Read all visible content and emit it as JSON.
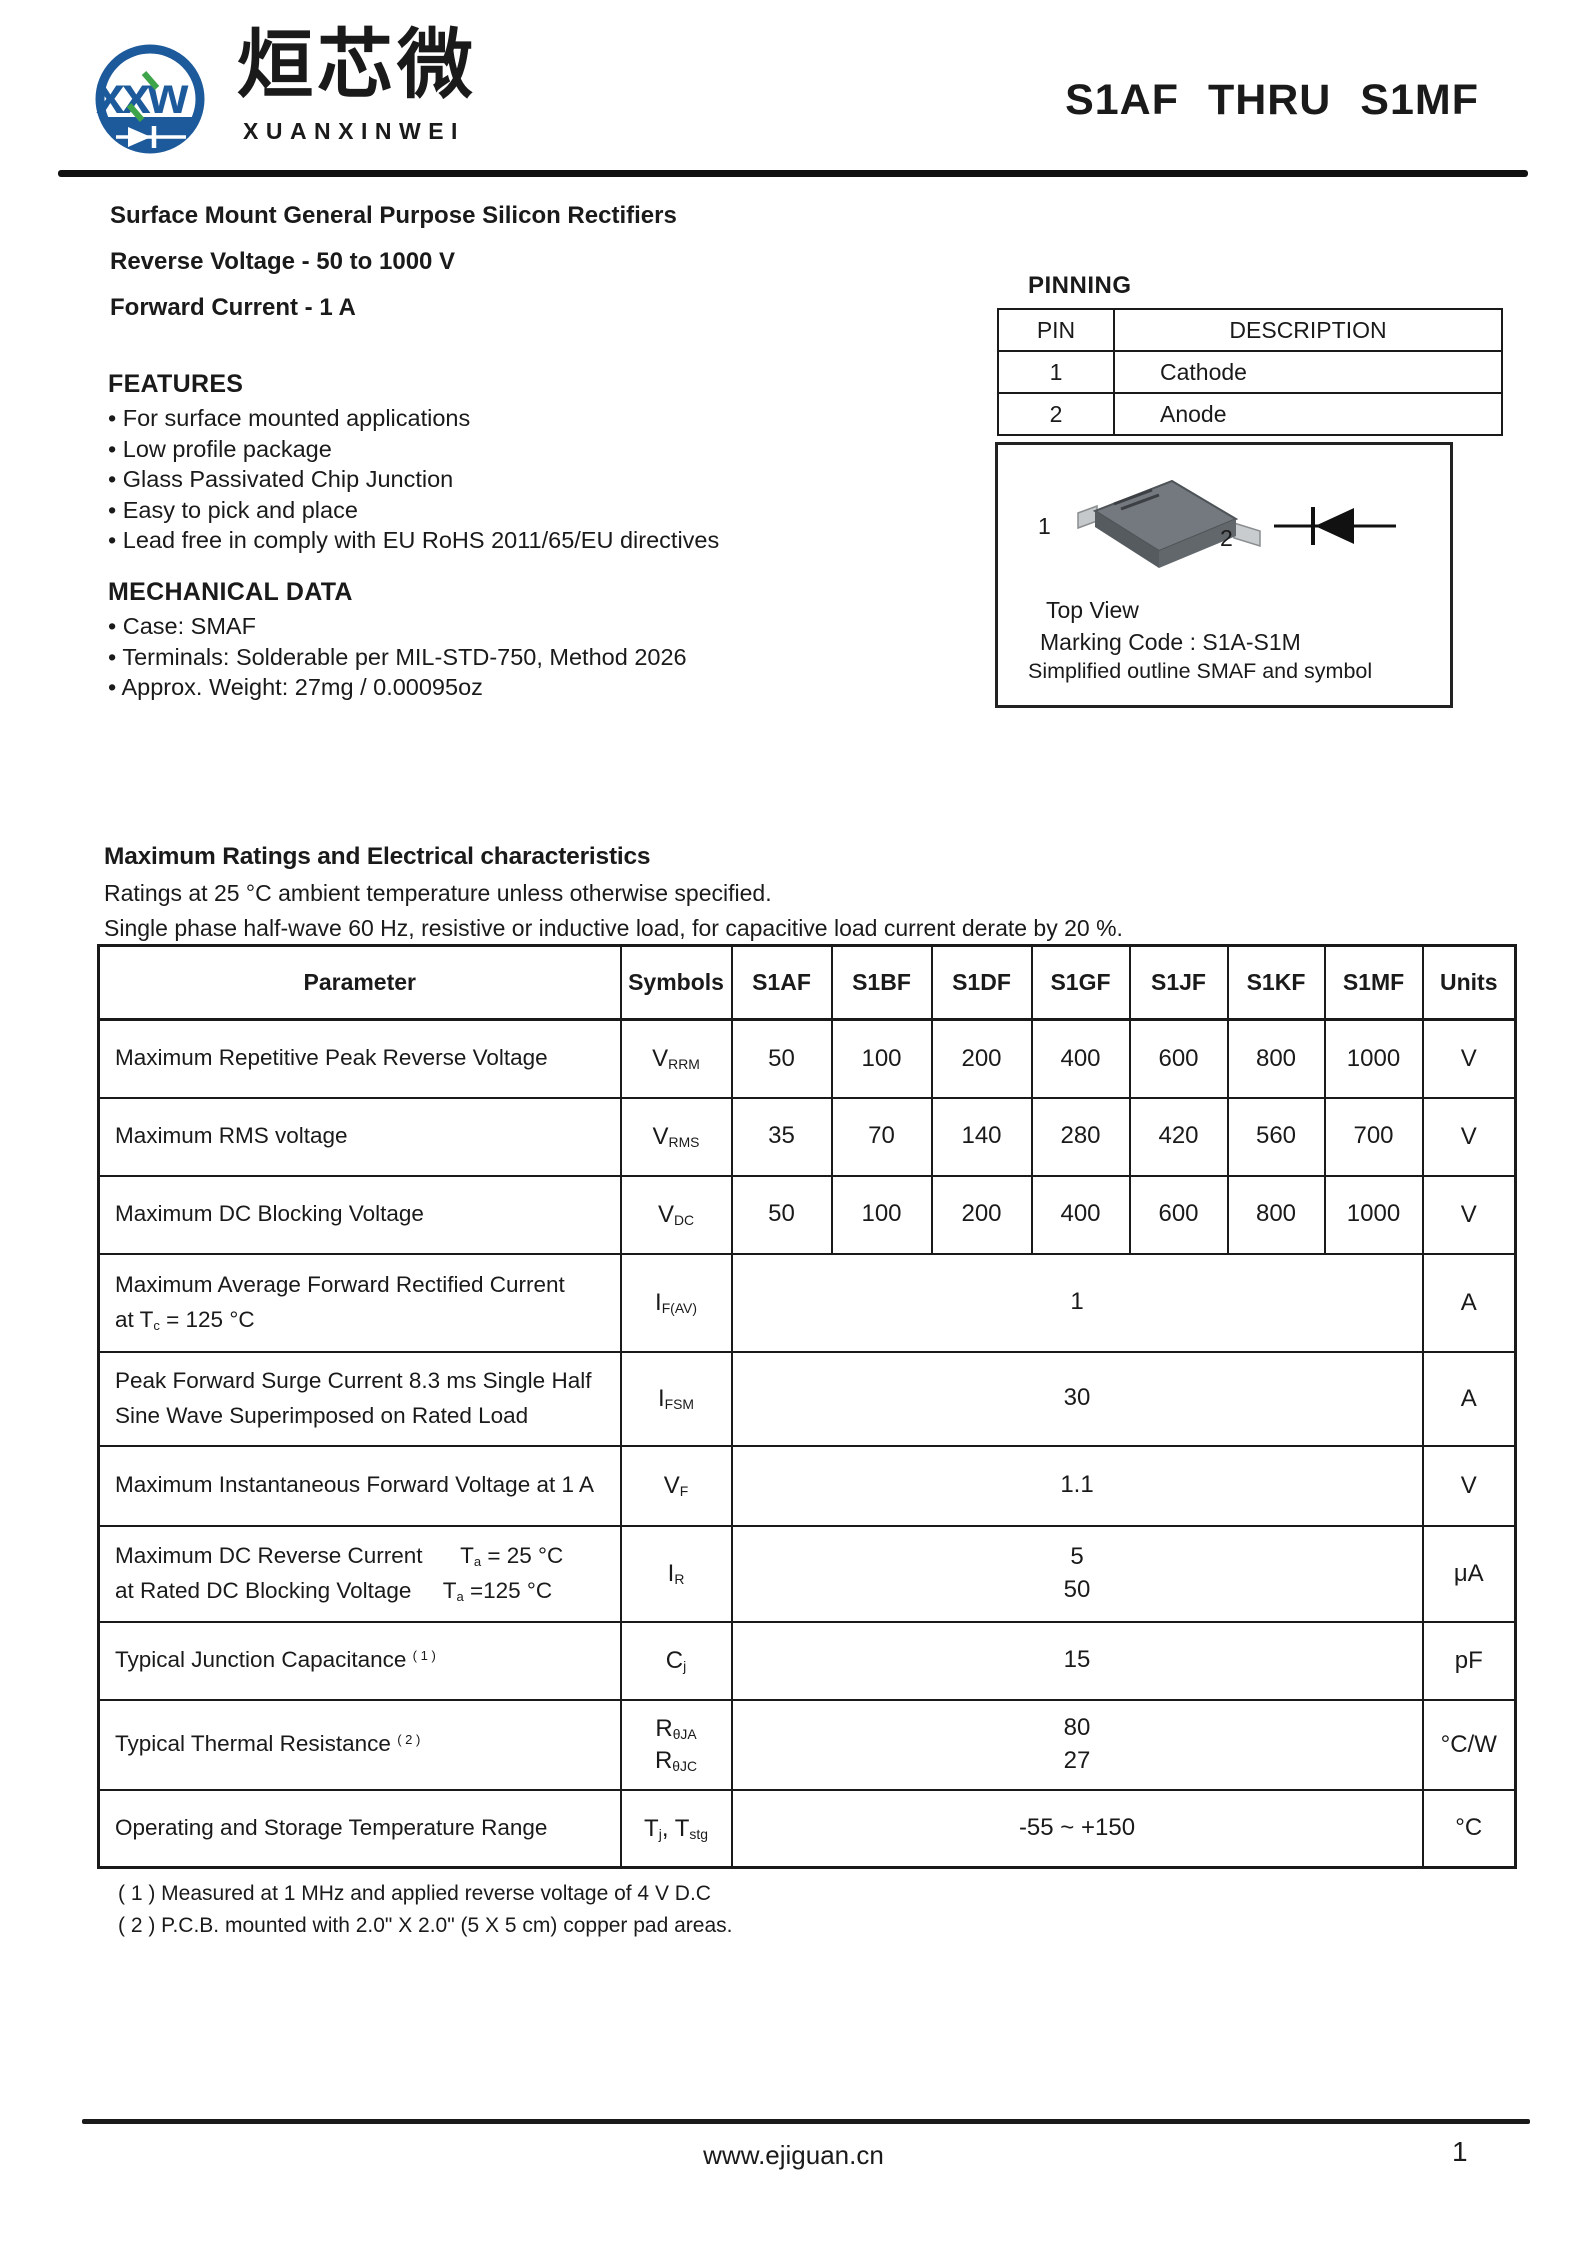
{
  "header": {
    "logo_text": "xxw",
    "company_cn": "烜芯微",
    "company_en": "XUANXINWEI",
    "title": "S1AF  THRU  S1MF",
    "brand_blue": "#1d5a9b",
    "brand_green": "#3ea44a"
  },
  "intro": {
    "line1": "Surface Mount General Purpose Silicon Rectifiers",
    "line2": "Reverse Voltage - 50 to 1000 V",
    "line3": "Forward Current - 1 A"
  },
  "features": {
    "heading": "FEATURES",
    "items": [
      "• For surface mounted applications",
      "• Low profile package",
      "• Glass Passivated Chip Junction",
      "• Easy to pick and place",
      "• Lead free in comply with EU RoHS 2011/65/EU directives"
    ]
  },
  "mechanical": {
    "heading": "MECHANICAL DATA",
    "items": [
      "• Case: SMAF",
      "• Terminals: Solderable per MIL-STD-750, Method 2026",
      "• Approx. Weight: 27mg / 0.00095oz"
    ]
  },
  "pinning": {
    "heading": "PINNING",
    "col_pin": "PIN",
    "col_desc": "DESCRIPTION",
    "rows": [
      {
        "pin": "1",
        "desc": "Cathode"
      },
      {
        "pin": "2",
        "desc": "Anode"
      }
    ]
  },
  "package_box": {
    "pin1": "1",
    "pin2": "2",
    "caption1": "Top View",
    "caption2": "Marking Code :  S1A-S1M",
    "caption3": "Simplified outline SMAF and symbol"
  },
  "ratings": {
    "heading": "Maximum Ratings and Electrical characteristics",
    "note1": "Ratings at 25 °C ambient temperature unless otherwise specified.",
    "note2": "Single phase half-wave 60 Hz, resistive or inductive load, for capacitive load current derate by 20 %."
  },
  "table": {
    "headers": [
      "Parameter",
      "Symbols",
      "S1AF",
      "S1BF",
      "S1DF",
      "S1GF",
      "S1JF",
      "S1KF",
      "S1MF",
      "Units"
    ],
    "rows": [
      {
        "param": [
          [
            {
              "t": "Maximum Repetitive Peak Reverse Voltage"
            }
          ]
        ],
        "symbol": [
          [
            {
              "t": "V"
            },
            {
              "t": "RRM",
              "sub": true
            }
          ]
        ],
        "values": [
          "50",
          "100",
          "200",
          "400",
          "600",
          "800",
          "1000"
        ],
        "unit": "V"
      },
      {
        "param": [
          [
            {
              "t": "Maximum RMS voltage"
            }
          ]
        ],
        "symbol": [
          [
            {
              "t": "V"
            },
            {
              "t": "RMS",
              "sub": true
            }
          ]
        ],
        "values": [
          "35",
          "70",
          "140",
          "280",
          "420",
          "560",
          "700"
        ],
        "unit": "V"
      },
      {
        "param": [
          [
            {
              "t": "Maximum DC Blocking Voltage"
            }
          ]
        ],
        "symbol": [
          [
            {
              "t": "V"
            },
            {
              "t": "DC",
              "sub": true
            }
          ]
        ],
        "values": [
          "50",
          "100",
          "200",
          "400",
          "600",
          "800",
          "1000"
        ],
        "unit": "V"
      },
      {
        "param": [
          [
            {
              "t": "Maximum Average Forward Rectified Current"
            }
          ],
          [
            {
              "t": "at T"
            },
            {
              "t": "c",
              "sub": true
            },
            {
              "t": " = 125 °C"
            }
          ]
        ],
        "symbol": [
          [
            {
              "t": "I"
            },
            {
              "t": "F(AV)",
              "sub": true
            }
          ]
        ],
        "merged": [
          "1"
        ],
        "unit": "A"
      },
      {
        "param": [
          [
            {
              "t": "Peak Forward Surge Current 8.3 ms Single Half"
            }
          ],
          [
            {
              "t": "Sine Wave Superimposed on Rated Load"
            }
          ]
        ],
        "symbol": [
          [
            {
              "t": "I"
            },
            {
              "t": "FSM",
              "sub": true
            }
          ]
        ],
        "merged": [
          "30"
        ],
        "unit": "A"
      },
      {
        "param": [
          [
            {
              "t": "Maximum Instantaneous Forward Voltage at 1 A"
            }
          ]
        ],
        "symbol": [
          [
            {
              "t": "V"
            },
            {
              "t": "F",
              "sub": true
            }
          ]
        ],
        "merged": [
          "1.1"
        ],
        "unit": "V"
      },
      {
        "param": [
          [
            {
              "t": "Maximum DC Reverse Current"
            },
            {
              "t": "      T"
            },
            {
              "t": "a",
              "sub": true
            },
            {
              "t": " = 25 °C"
            }
          ],
          [
            {
              "t": "at Rated DC Blocking Voltage"
            },
            {
              "t": "     T"
            },
            {
              "t": "a",
              "sub": true
            },
            {
              "t": " =125 °C"
            }
          ]
        ],
        "symbol": [
          [
            {
              "t": "I"
            },
            {
              "t": "R",
              "sub": true
            }
          ]
        ],
        "merged": [
          "5",
          "50"
        ],
        "unit": "μA"
      },
      {
        "param": [
          [
            {
              "t": "Typical Junction Capacitance "
            },
            {
              "t": "( 1 )",
              "sup": true
            }
          ]
        ],
        "symbol": [
          [
            {
              "t": "C"
            },
            {
              "t": "j",
              "sub": true
            }
          ]
        ],
        "merged": [
          "15"
        ],
        "unit": "pF"
      },
      {
        "param": [
          [
            {
              "t": "Typical Thermal Resistance "
            },
            {
              "t": "( 2 )",
              "sup": true
            }
          ]
        ],
        "symbol": [
          [
            {
              "t": "R"
            },
            {
              "t": "θJA",
              "sub": true
            }
          ],
          [
            {
              "t": "R"
            },
            {
              "t": "θJC",
              "sub": true
            }
          ]
        ],
        "merged": [
          "80",
          "27"
        ],
        "unit": "°C/W"
      },
      {
        "param": [
          [
            {
              "t": "Operating and Storage Temperature Range"
            }
          ]
        ],
        "symbol": [
          [
            {
              "t": "T"
            },
            {
              "t": "j",
              "sub": true
            },
            {
              "t": ", T"
            },
            {
              "t": "stg",
              "sub": true
            }
          ]
        ],
        "merged": [
          "-55 ~ +150"
        ],
        "unit": "°C"
      }
    ]
  },
  "footnotes": [
    "( 1 ) Measured at 1 MHz and applied reverse voltage of 4 V D.C",
    "( 2 ) P.C.B. mounted with 2.0\" X 2.0\" (5 X 5 cm) copper pad areas."
  ],
  "footer": {
    "url": "www.ejiguan.cn",
    "page": "1"
  }
}
